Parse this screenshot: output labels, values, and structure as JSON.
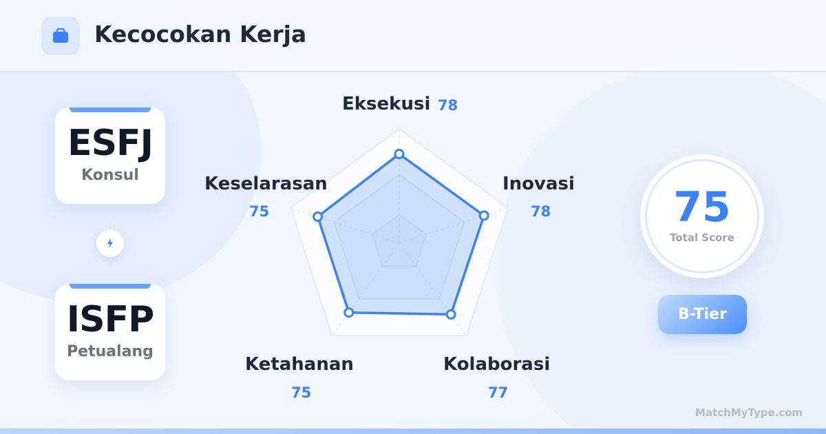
{
  "header": {
    "title": "Kecocokan Kerja",
    "icon": "briefcase-icon"
  },
  "types": [
    {
      "code": "ESFJ",
      "name": "Konsul"
    },
    {
      "code": "ISFP",
      "name": "Petualang"
    }
  ],
  "link_icon": "lightning-icon",
  "chart_data": {
    "type": "radar",
    "max": 100,
    "axes": [
      {
        "label": "Eksekusi",
        "value": 78
      },
      {
        "label": "Inovasi",
        "value": 78
      },
      {
        "label": "Kolaborasi",
        "value": 77
      },
      {
        "label": "Ketahanan",
        "value": 75
      },
      {
        "label": "Keselarasan",
        "value": 75
      }
    ],
    "color": "#3b82f6"
  },
  "score": {
    "value": "75",
    "caption": "Total Score"
  },
  "tier": "B-Tier",
  "brand": "MatchMyType.com"
}
